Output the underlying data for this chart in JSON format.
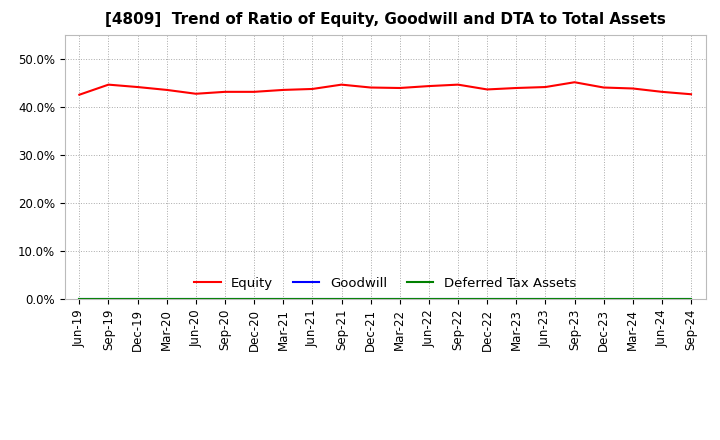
{
  "title": "[4809]  Trend of Ratio of Equity, Goodwill and DTA to Total Assets",
  "x_labels": [
    "Jun-19",
    "Sep-19",
    "Dec-19",
    "Mar-20",
    "Jun-20",
    "Sep-20",
    "Dec-20",
    "Mar-21",
    "Jun-21",
    "Sep-21",
    "Dec-21",
    "Mar-22",
    "Jun-22",
    "Sep-22",
    "Dec-22",
    "Mar-23",
    "Jun-23",
    "Sep-23",
    "Dec-23",
    "Mar-24",
    "Jun-24",
    "Sep-24"
  ],
  "equity": [
    0.426,
    0.447,
    0.442,
    0.436,
    0.428,
    0.432,
    0.432,
    0.436,
    0.438,
    0.447,
    0.441,
    0.44,
    0.444,
    0.447,
    0.437,
    0.44,
    0.442,
    0.452,
    0.441,
    0.439,
    0.432,
    0.427
  ],
  "goodwill": [
    0,
    0,
    0,
    0,
    0,
    0,
    0,
    0,
    0,
    0,
    0,
    0,
    0,
    0,
    0,
    0,
    0,
    0,
    0,
    0,
    0,
    0
  ],
  "dta": [
    0,
    0,
    0,
    0,
    0,
    0,
    0,
    0,
    0,
    0,
    0,
    0,
    0,
    0,
    0,
    0,
    0,
    0,
    0,
    0,
    0,
    0
  ],
  "equity_color": "#ff0000",
  "goodwill_color": "#0000ff",
  "dta_color": "#008000",
  "ylim": [
    0.0,
    0.55
  ],
  "yticks": [
    0.0,
    0.1,
    0.2,
    0.3,
    0.4,
    0.5
  ],
  "ytick_labels": [
    "0.0%",
    "10.0%",
    "20.0%",
    "30.0%",
    "40.0%",
    "50.0%"
  ],
  "bg_color": "#ffffff",
  "plot_bg_color": "#ffffff",
  "grid_color": "#aaaaaa",
  "legend_labels": [
    "Equity",
    "Goodwill",
    "Deferred Tax Assets"
  ],
  "title_fontsize": 11,
  "tick_fontsize": 8.5,
  "legend_fontsize": 9.5
}
